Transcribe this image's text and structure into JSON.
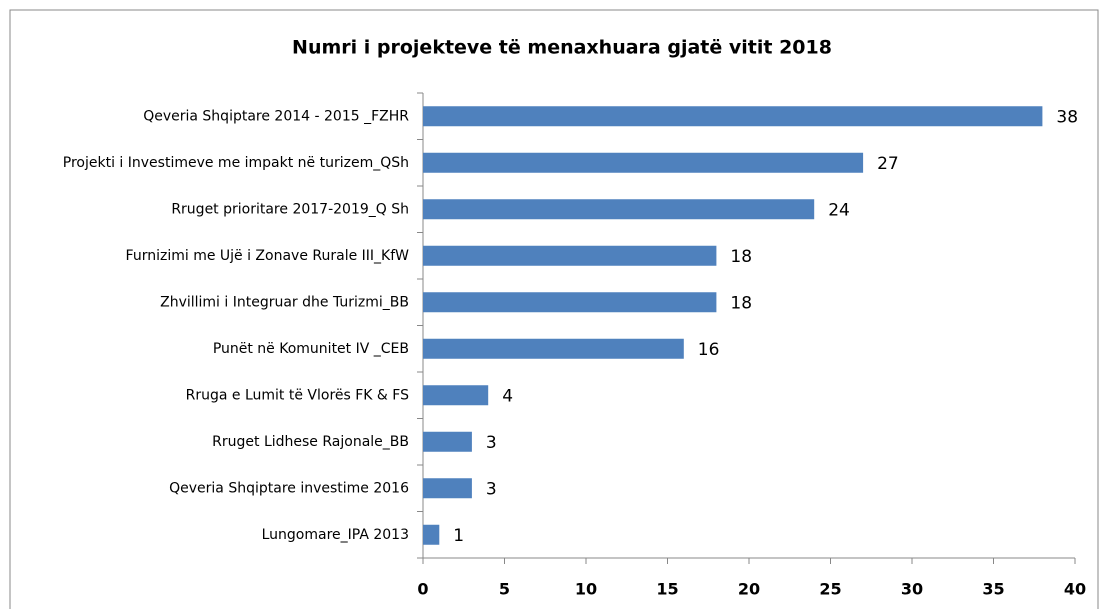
{
  "chart_data": {
    "type": "bar",
    "orientation": "horizontal",
    "title": "Numri i projekteve të menaxhuara gjatë vitit 2018",
    "categories": [
      "Qeveria Shqiptare 2014 - 2015 _FZHR",
      "Projekti i Investimeve me impakt në turizem_QSh",
      "Rruget prioritare 2017-2019_Q Sh",
      "Furnizimi me Ujë i Zonave Rurale III_KfW",
      "Zhvillimi i Integruar dhe Turizmi_BB",
      "Punët në Komunitet IV _CEB",
      "Rruga e Lumit të Vlorës FK & FS",
      "Rruget Lidhese Rajonale_BB",
      "Qeveria Shqiptare investime 2016",
      "Lungomare_IPA 2013"
    ],
    "values": [
      38,
      27,
      24,
      18,
      18,
      16,
      4,
      3,
      3,
      1
    ],
    "color": "#4f81bd",
    "xlim": [
      0,
      40
    ],
    "xticks": [
      0,
      5,
      10,
      15,
      20,
      25,
      30,
      35,
      40
    ],
    "grid": false
  }
}
